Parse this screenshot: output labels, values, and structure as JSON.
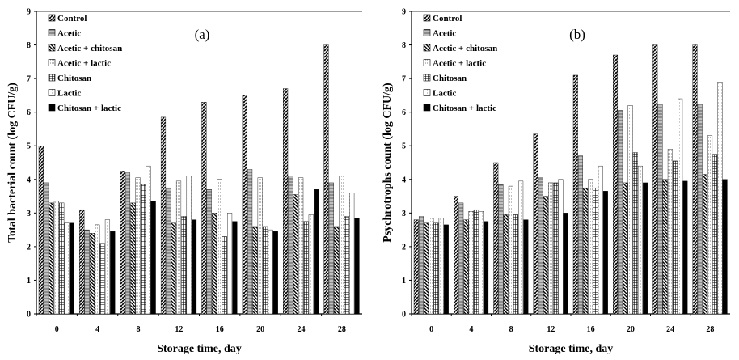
{
  "chart_data": [
    {
      "type": "bar",
      "panel_label": "(a)",
      "ylabel": "Total bacterial count (log CFU/g)",
      "xlabel": "Storage time, day",
      "categories": [
        "0",
        "4",
        "8",
        "12",
        "16",
        "20",
        "24",
        "28"
      ],
      "ylim": [
        0,
        9
      ],
      "yticks": [
        "0",
        "1",
        "2",
        "3",
        "4",
        "5",
        "6",
        "7",
        "8",
        "9"
      ],
      "legend_position": "top-left",
      "series": [
        {
          "name": "Control",
          "values": [
            5.0,
            3.1,
            4.25,
            5.85,
            6.3,
            6.5,
            6.7,
            8.0
          ]
        },
        {
          "name": "Acetic",
          "values": [
            3.9,
            2.5,
            4.2,
            3.75,
            3.7,
            4.3,
            4.1,
            3.9
          ]
        },
        {
          "name": "Acetic + chitosan",
          "values": [
            3.3,
            2.4,
            3.3,
            2.7,
            3.0,
            2.6,
            3.55,
            2.6
          ]
        },
        {
          "name": "Acetic + lactic",
          "values": [
            3.35,
            2.65,
            4.05,
            3.95,
            4.0,
            4.05,
            4.05,
            4.1
          ]
        },
        {
          "name": "Chitosan",
          "values": [
            3.3,
            2.1,
            3.85,
            2.9,
            2.3,
            2.6,
            2.75,
            2.9
          ]
        },
        {
          "name": "Lactic",
          "values": [
            2.7,
            2.8,
            4.4,
            4.1,
            3.0,
            2.5,
            2.95,
            3.6
          ]
        },
        {
          "name": "Chitosan + lactic",
          "values": [
            2.7,
            2.45,
            3.35,
            2.8,
            2.75,
            2.45,
            3.7,
            2.85
          ]
        }
      ]
    },
    {
      "type": "bar",
      "panel_label": "(b)",
      "ylabel": "Psychrotrophs count (log CFU/g)",
      "xlabel": "Storage time, day",
      "categories": [
        "0",
        "4",
        "8",
        "12",
        "16",
        "20",
        "24",
        "28"
      ],
      "ylim": [
        0,
        9
      ],
      "yticks": [
        "0",
        "1",
        "2",
        "3",
        "4",
        "5",
        "6",
        "7",
        "8",
        "9"
      ],
      "legend_position": "top-left",
      "series": [
        {
          "name": "Control",
          "values": [
            2.8,
            3.5,
            4.5,
            5.35,
            7.1,
            7.7,
            8.0,
            8.0
          ]
        },
        {
          "name": "Acetic",
          "values": [
            2.9,
            3.3,
            3.85,
            4.05,
            4.7,
            6.05,
            6.25,
            6.25
          ]
        },
        {
          "name": "Acetic + chitosan",
          "values": [
            2.7,
            2.8,
            2.95,
            3.5,
            3.75,
            3.9,
            4.0,
            4.15
          ]
        },
        {
          "name": "Acetic + lactic",
          "values": [
            2.85,
            3.05,
            3.8,
            3.9,
            4.0,
            6.2,
            4.9,
            5.3
          ]
        },
        {
          "name": "Chitosan",
          "values": [
            2.7,
            3.1,
            2.95,
            3.9,
            3.75,
            4.8,
            4.55,
            4.75
          ]
        },
        {
          "name": "Lactic",
          "values": [
            2.85,
            3.05,
            3.95,
            4.0,
            4.4,
            4.4,
            6.4,
            6.9
          ]
        },
        {
          "name": "Chitosan + lactic",
          "values": [
            2.65,
            2.75,
            2.8,
            3.0,
            3.65,
            3.9,
            3.95,
            4.0
          ]
        }
      ]
    }
  ]
}
